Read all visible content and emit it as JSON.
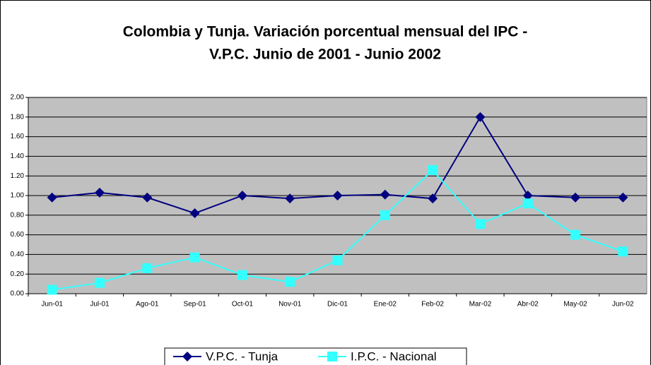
{
  "chart_data": {
    "type": "line",
    "title": [
      "Colombia y Tunja. Variación porcentual mensual del IPC -",
      "V.P.C. Junio de 2001 - Junio 2002"
    ],
    "categories": [
      "Jun-01",
      "Jul-01",
      "Ago-01",
      "Sep-01",
      "Oct-01",
      "Nov-01",
      "Dic-01",
      "Ene-02",
      "Feb-02",
      "Mar-02",
      "Abr-02",
      "May-02",
      "Jun-02"
    ],
    "series": [
      {
        "name": "V.P.C. - Tunja",
        "color": "#000080",
        "marker": "diamond",
        "values": [
          0.98,
          1.03,
          0.98,
          0.82,
          1.0,
          0.97,
          1.0,
          1.01,
          0.97,
          1.8,
          1.0,
          0.98,
          0.98
        ]
      },
      {
        "name": "I.P.C. - Nacional",
        "color": "#33ffff",
        "marker": "square",
        "values": [
          0.04,
          0.11,
          0.26,
          0.37,
          0.19,
          0.12,
          0.34,
          0.8,
          1.26,
          0.71,
          0.92,
          0.6,
          0.43
        ]
      }
    ],
    "ylim": [
      0,
      2
    ],
    "yticks": [
      {
        "value": 0,
        "label": "0.00"
      },
      {
        "value": 0.2,
        "label": "0.20"
      },
      {
        "value": 0.4,
        "label": "0.40"
      },
      {
        "value": 0.6,
        "label": "0.60"
      },
      {
        "value": 0.8,
        "label": "0.80"
      },
      {
        "value": 1,
        "label": "1.00"
      },
      {
        "value": 1.2,
        "label": "1.20"
      },
      {
        "value": 1.4,
        "label": "1.40"
      },
      {
        "value": 1.6,
        "label": "1.60"
      },
      {
        "value": 1.8,
        "label": "1.80"
      },
      {
        "value": 2,
        "label": "2.00"
      }
    ],
    "grid": true,
    "legend": "bottom",
    "plot_background": "#c0c0c0"
  }
}
